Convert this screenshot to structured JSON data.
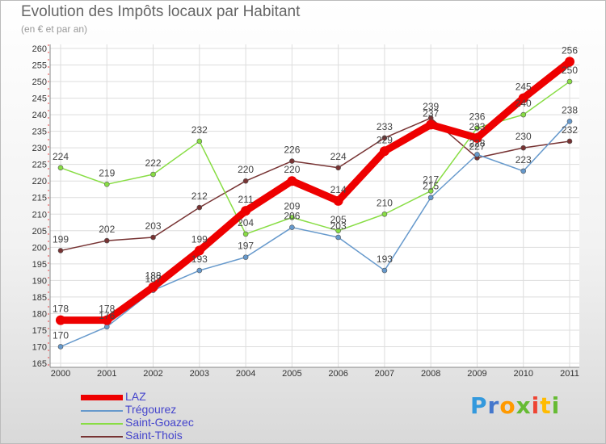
{
  "title": "Evolution des Impôts locaux par Habitant",
  "subtitle": "(en € et par an)",
  "logo": "Proxiti",
  "chart_data": {
    "type": "line",
    "title": "Evolution des Impôts locaux par Habitant",
    "ylabel": "(en € et par an)",
    "xlabel": "",
    "x": [
      "2000",
      "2001",
      "2002",
      "2003",
      "2004",
      "2005",
      "2006",
      "2007",
      "2008",
      "2009",
      "2010",
      "2011"
    ],
    "ylim": [
      165,
      260
    ],
    "yticks": [
      165,
      170,
      175,
      180,
      185,
      190,
      195,
      200,
      205,
      210,
      215,
      220,
      225,
      230,
      235,
      240,
      245,
      250,
      255,
      260
    ],
    "series": [
      {
        "name": "LAZ",
        "color": "#ee0000",
        "values": [
          178,
          178,
          188,
          199,
          211,
          220,
          214,
          229,
          237,
          233,
          245,
          256
        ]
      },
      {
        "name": "Trégourez",
        "color": "#6699cc",
        "values": [
          170,
          176,
          187,
          193,
          197,
          206,
          203,
          193,
          215,
          228,
          223,
          238
        ]
      },
      {
        "name": "Saint-Goazec",
        "color": "#88dd44",
        "values": [
          224,
          219,
          222,
          232,
          204,
          209,
          205,
          210,
          217,
          236,
          240,
          250
        ]
      },
      {
        "name": "Saint-Thois",
        "color": "#773333",
        "values": [
          199,
          202,
          203,
          212,
          220,
          226,
          224,
          233,
          239,
          227,
          230,
          232
        ]
      }
    ]
  }
}
